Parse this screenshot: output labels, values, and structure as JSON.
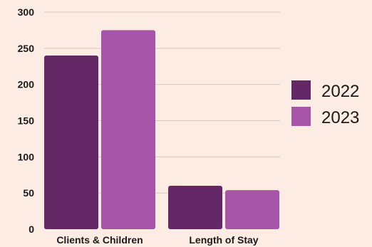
{
  "colors": {
    "background": "#fdece3",
    "series_2022": "#642866",
    "series_2023": "#a655a9",
    "grid": "#d9c4ba"
  },
  "chart_data": {
    "type": "bar",
    "categories": [
      "Clients & Children",
      "Length of Stay"
    ],
    "series": [
      {
        "name": "2022",
        "values": [
          240,
          60
        ],
        "color": "#642866"
      },
      {
        "name": "2023",
        "values": [
          275,
          54
        ],
        "color": "#a655a9"
      }
    ],
    "ylim": [
      0,
      300
    ],
    "yticks": [
      0,
      50,
      100,
      150,
      200,
      250,
      300
    ],
    "grid": true,
    "legend_position": "right",
    "title": "",
    "xlabel": "",
    "ylabel": ""
  }
}
